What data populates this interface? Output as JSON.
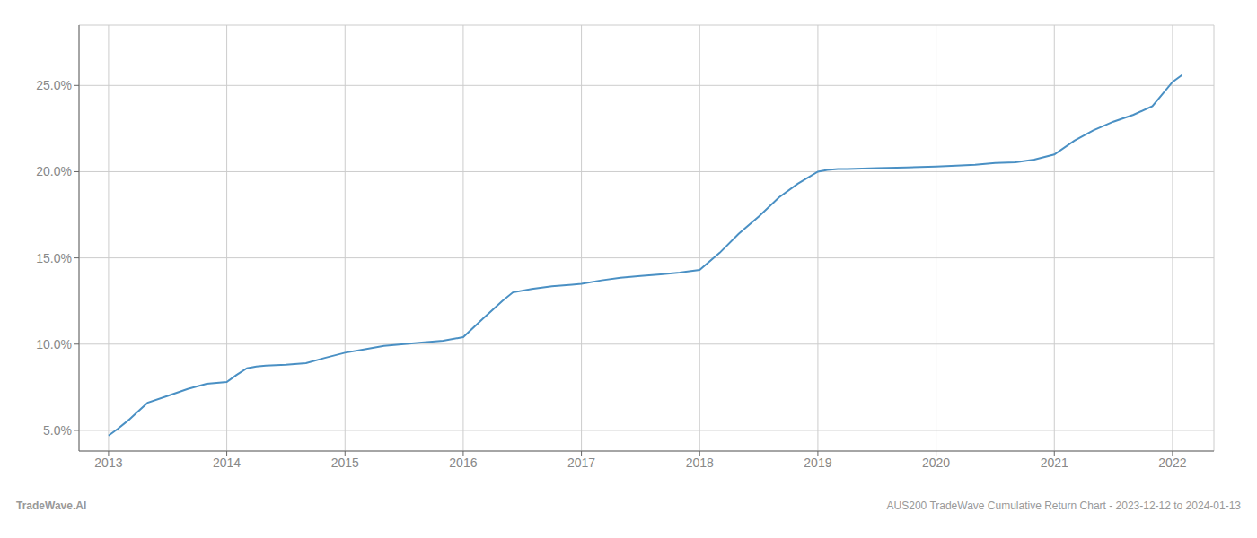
{
  "chart_data": {
    "type": "line",
    "x": [
      2013.0,
      2013.08,
      2013.17,
      2013.25,
      2013.33,
      2013.5,
      2013.67,
      2013.83,
      2014.0,
      2014.08,
      2014.17,
      2014.25,
      2014.33,
      2014.5,
      2014.67,
      2014.83,
      2015.0,
      2015.17,
      2015.33,
      2015.5,
      2015.67,
      2015.83,
      2016.0,
      2016.17,
      2016.33,
      2016.42,
      2016.58,
      2016.75,
      2016.92,
      2017.0,
      2017.17,
      2017.33,
      2017.5,
      2017.67,
      2017.83,
      2018.0,
      2018.17,
      2018.33,
      2018.5,
      2018.67,
      2018.83,
      2019.0,
      2019.08,
      2019.17,
      2019.25,
      2019.5,
      2019.75,
      2020.0,
      2020.17,
      2020.33,
      2020.5,
      2020.67,
      2020.83,
      2021.0,
      2021.17,
      2021.33,
      2021.5,
      2021.67,
      2021.83,
      2022.0,
      2022.08
    ],
    "values": [
      4.7,
      5.1,
      5.6,
      6.1,
      6.6,
      7.0,
      7.4,
      7.7,
      7.8,
      8.2,
      8.6,
      8.7,
      8.75,
      8.8,
      8.9,
      9.2,
      9.5,
      9.7,
      9.9,
      10.0,
      10.1,
      10.2,
      10.4,
      11.5,
      12.5,
      13.0,
      13.2,
      13.35,
      13.45,
      13.5,
      13.7,
      13.85,
      13.95,
      14.05,
      14.15,
      14.3,
      15.3,
      16.4,
      17.4,
      18.5,
      19.3,
      20.0,
      20.1,
      20.15,
      20.15,
      20.2,
      20.25,
      20.3,
      20.35,
      20.4,
      20.5,
      20.55,
      20.7,
      21.0,
      21.8,
      22.4,
      22.9,
      23.3,
      23.8,
      25.2,
      25.6
    ],
    "color": "#4a90c4",
    "xlim": [
      2012.75,
      2022.35
    ],
    "ylim": [
      3.8,
      28.5
    ],
    "xticks": [
      2013,
      2014,
      2015,
      2016,
      2017,
      2018,
      2019,
      2020,
      2021,
      2022
    ],
    "yticks": [
      {
        "value": 5.0,
        "label": "5.0%"
      },
      {
        "value": 10.0,
        "label": "10.0%"
      },
      {
        "value": 15.0,
        "label": "15.0%"
      },
      {
        "value": 20.0,
        "label": "20.0%"
      },
      {
        "value": 25.0,
        "label": "25.0%"
      }
    ],
    "grid": true,
    "annotations": [
      "TradeWave.AI",
      "AUS200 TradeWave Cumulative Return Chart - 2023-12-12 to 2024-01-13"
    ]
  }
}
